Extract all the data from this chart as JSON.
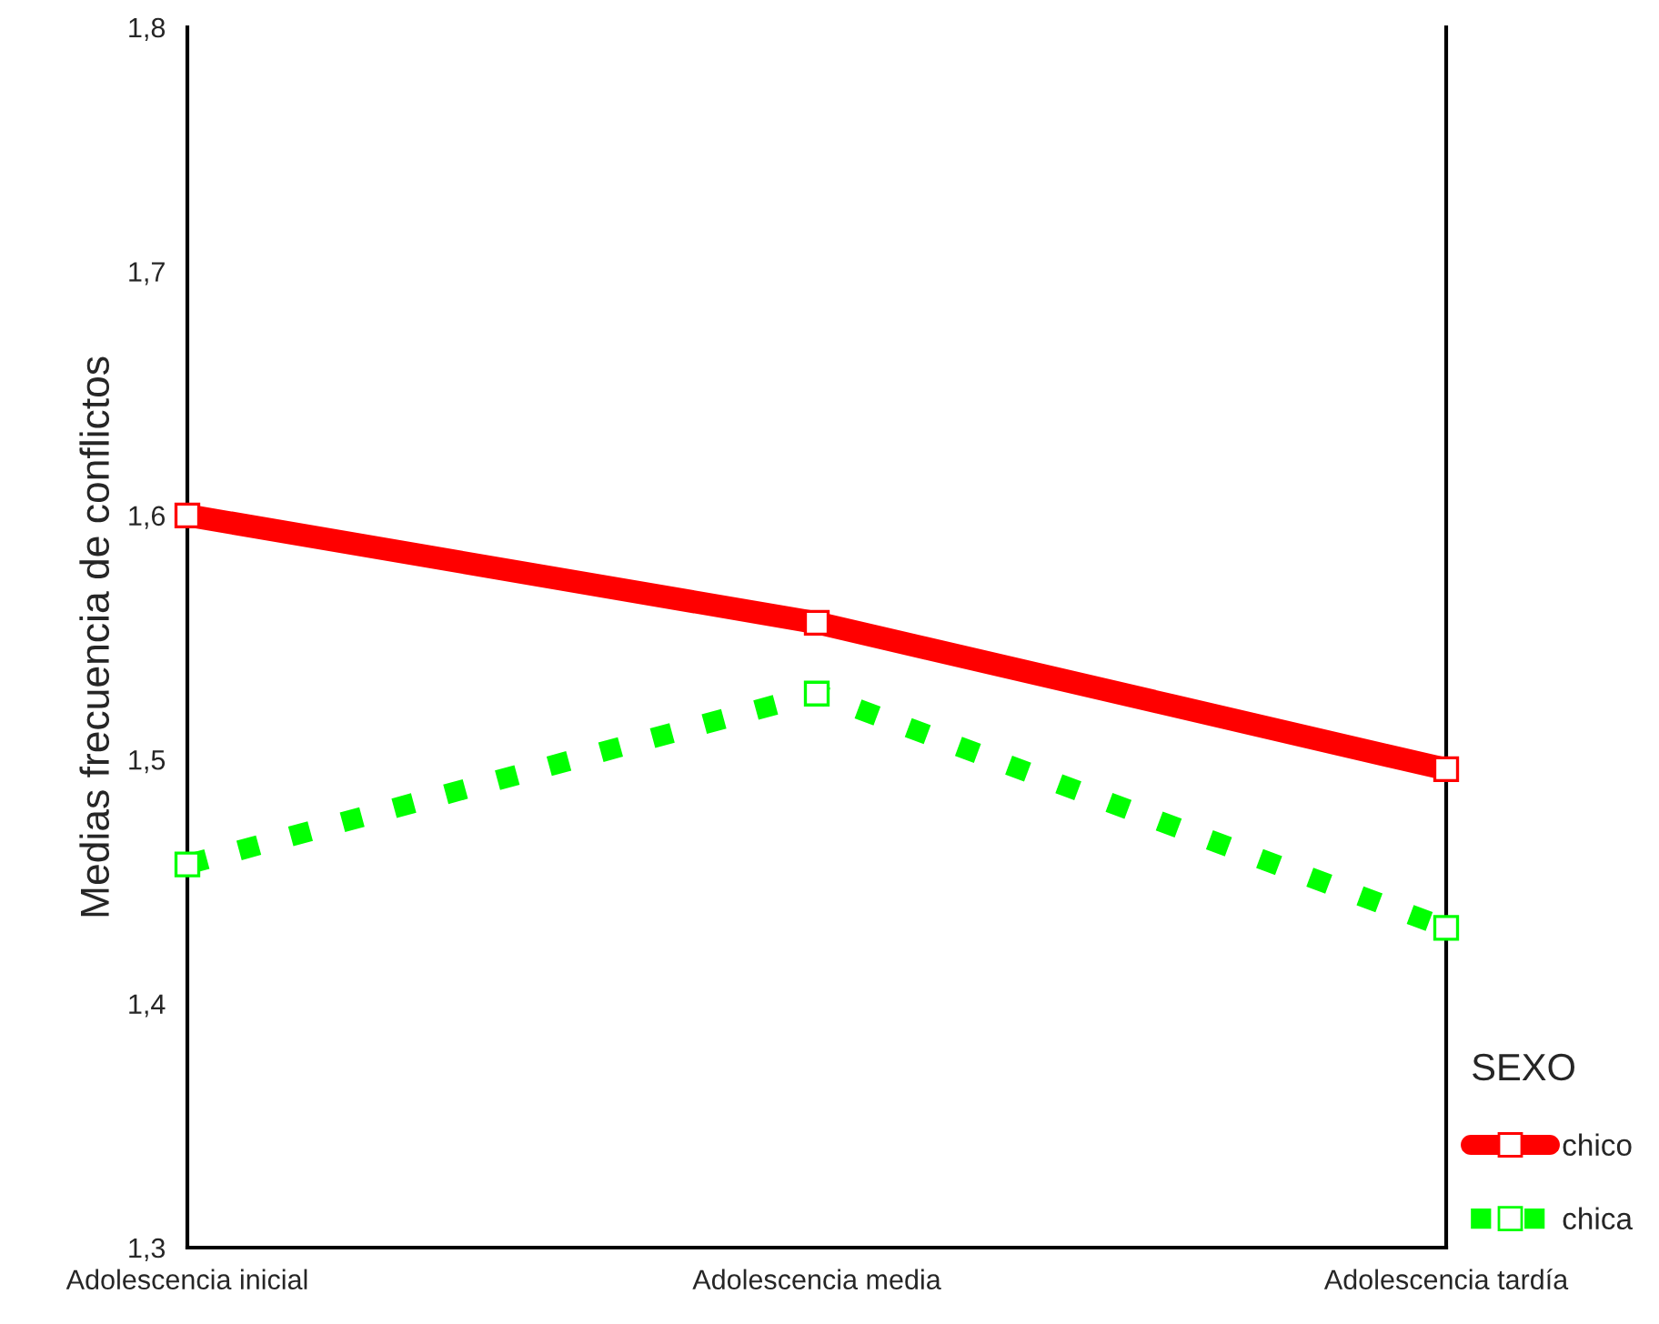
{
  "chart_data": {
    "type": "line",
    "categories": [
      "Adolescencia inicial",
      "Adolescencia media",
      "Adolescencia tardía"
    ],
    "ylabel": "Medias frecuencia de conflictos",
    "ylim": [
      1.3,
      1.8
    ],
    "yticks": [
      {
        "value": 1.3,
        "label": "1,3"
      },
      {
        "value": 1.4,
        "label": "1,4"
      },
      {
        "value": 1.5,
        "label": "1,5"
      },
      {
        "value": 1.6,
        "label": "1,6"
      },
      {
        "value": 1.7,
        "label": "1,7"
      },
      {
        "value": 1.8,
        "label": "1,8"
      }
    ],
    "legend": "right",
    "legend_title": "SEXO",
    "marker": "square",
    "series": [
      {
        "name": "chico",
        "color": "#ff0000",
        "line_style": "solid",
        "values": [
          1.6,
          1.556,
          1.496
        ]
      },
      {
        "name": "chica",
        "color": "#00ff00",
        "line_style": "dotted",
        "values": [
          1.457,
          1.527,
          1.431
        ]
      }
    ]
  }
}
